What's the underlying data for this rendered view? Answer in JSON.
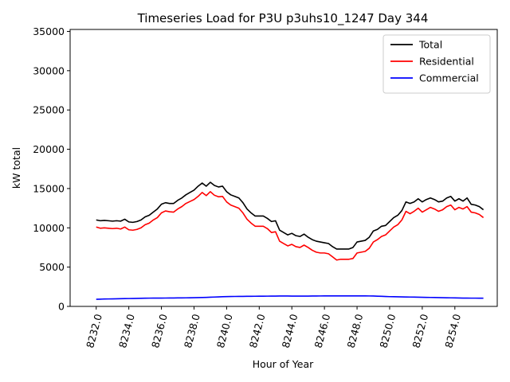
{
  "chart_data": {
    "type": "line",
    "title": "Timeseries Load for P3U p3uhs10_1247  Day 344",
    "xlabel": "Hour of Year",
    "ylabel": "kW total",
    "xlim": [
      8230.4,
      8256.6
    ],
    "ylim": [
      0,
      35250
    ],
    "xticks": [
      8232,
      8234,
      8236,
      8238,
      8240,
      8242,
      8244,
      8246,
      8248,
      8250,
      8252,
      8254
    ],
    "xtick_labels": [
      "8232.0",
      "8234.0",
      "8236.0",
      "8238.0",
      "8240.0",
      "8242.0",
      "8244.0",
      "8246.0",
      "8248.0",
      "8250.0",
      "8252.0",
      "8254.0"
    ],
    "yticks": [
      0,
      5000,
      10000,
      15000,
      20000,
      25000,
      30000,
      35000
    ],
    "ytick_labels": [
      "0",
      "5000",
      "10000",
      "15000",
      "20000",
      "25000",
      "30000",
      "35000"
    ],
    "x": [
      8232.0,
      8232.25,
      8232.5,
      8232.75,
      8233.0,
      8233.25,
      8233.5,
      8233.75,
      8234.0,
      8234.25,
      8234.5,
      8234.75,
      8235.0,
      8235.25,
      8235.5,
      8235.75,
      8236.0,
      8236.25,
      8236.5,
      8236.75,
      8237.0,
      8237.25,
      8237.5,
      8237.75,
      8238.0,
      8238.25,
      8238.5,
      8238.75,
      8239.0,
      8239.25,
      8239.5,
      8239.75,
      8240.0,
      8240.25,
      8240.5,
      8240.75,
      8241.0,
      8241.25,
      8241.5,
      8241.75,
      8242.0,
      8242.25,
      8242.5,
      8242.75,
      8243.0,
      8243.25,
      8243.5,
      8243.75,
      8244.0,
      8244.25,
      8244.5,
      8244.75,
      8245.0,
      8245.25,
      8245.5,
      8245.75,
      8246.0,
      8246.25,
      8246.5,
      8246.75,
      8247.0,
      8247.25,
      8247.5,
      8247.75,
      8248.0,
      8248.25,
      8248.5,
      8248.75,
      8249.0,
      8249.25,
      8249.5,
      8249.75,
      8250.0,
      8250.25,
      8250.5,
      8250.75,
      8251.0,
      8251.25,
      8251.5,
      8251.75,
      8252.0,
      8252.25,
      8252.5,
      8252.75,
      8253.0,
      8253.25,
      8253.5,
      8253.75,
      8254.0,
      8254.25,
      8254.5,
      8254.75,
      8255.0,
      8255.25,
      8255.5,
      8255.75
    ],
    "series": [
      {
        "name": "Total",
        "color": "#000000",
        "values": [
          11000,
          10900,
          10950,
          10900,
          10850,
          10900,
          10850,
          11100,
          10750,
          10700,
          10800,
          11000,
          11400,
          11600,
          12000,
          12400,
          13000,
          13200,
          13100,
          13100,
          13500,
          13800,
          14200,
          14500,
          14800,
          15300,
          15700,
          15300,
          15800,
          15400,
          15200,
          15300,
          14600,
          14200,
          14000,
          13800,
          13200,
          12400,
          11900,
          11500,
          11500,
          11500,
          11200,
          10800,
          10900,
          9700,
          9400,
          9100,
          9300,
          9000,
          8900,
          9200,
          8800,
          8500,
          8300,
          8200,
          8100,
          8000,
          7600,
          7300,
          7300,
          7300,
          7300,
          7500,
          8200,
          8300,
          8400,
          8800,
          9600,
          9800,
          10200,
          10300,
          10800,
          11300,
          11600,
          12200,
          13300,
          13100,
          13300,
          13700,
          13300,
          13600,
          13800,
          13600,
          13300,
          13400,
          13800,
          14000,
          13400,
          13700,
          13400,
          13800,
          13000,
          12900,
          12700,
          12300
        ]
      },
      {
        "name": "Residential",
        "color": "#ff0000",
        "values": [
          10100,
          9950,
          10000,
          9950,
          9900,
          9950,
          9850,
          10100,
          9750,
          9700,
          9800,
          10000,
          10400,
          10600,
          11000,
          11300,
          11900,
          12150,
          12050,
          12000,
          12400,
          12700,
          13100,
          13350,
          13600,
          14000,
          14500,
          14100,
          14600,
          14150,
          13950,
          14000,
          13300,
          12900,
          12700,
          12500,
          11900,
          11100,
          10600,
          10200,
          10200,
          10200,
          9900,
          9400,
          9500,
          8300,
          8000,
          7700,
          7900,
          7600,
          7500,
          7800,
          7500,
          7150,
          6900,
          6800,
          6800,
          6700,
          6300,
          5900,
          6000,
          6000,
          6000,
          6100,
          6800,
          6900,
          7000,
          7400,
          8200,
          8500,
          8900,
          9100,
          9600,
          10100,
          10400,
          11000,
          12100,
          11800,
          12100,
          12500,
          12000,
          12300,
          12600,
          12400,
          12100,
          12300,
          12700,
          12900,
          12300,
          12600,
          12400,
          12700,
          12000,
          11900,
          11700,
          11300
        ]
      },
      {
        "name": "Commercial",
        "color": "#0000ff",
        "values": [
          900,
          920,
          940,
          950,
          960,
          970,
          980,
          990,
          1000,
          1010,
          1020,
          1030,
          1040,
          1050,
          1055,
          1060,
          1060,
          1065,
          1070,
          1075,
          1080,
          1085,
          1090,
          1100,
          1110,
          1120,
          1130,
          1150,
          1170,
          1190,
          1210,
          1230,
          1250,
          1260,
          1265,
          1270,
          1275,
          1280,
          1285,
          1290,
          1295,
          1300,
          1305,
          1310,
          1315,
          1320,
          1320,
          1320,
          1315,
          1310,
          1310,
          1310,
          1315,
          1320,
          1325,
          1330,
          1335,
          1340,
          1340,
          1340,
          1340,
          1340,
          1340,
          1340,
          1340,
          1340,
          1340,
          1330,
          1320,
          1300,
          1280,
          1260,
          1240,
          1230,
          1220,
          1210,
          1200,
          1190,
          1180,
          1170,
          1160,
          1150,
          1140,
          1130,
          1120,
          1110,
          1100,
          1090,
          1080,
          1070,
          1060,
          1055,
          1050,
          1050,
          1045,
          1040
        ]
      }
    ],
    "legend_position": "top-right",
    "grid": false
  }
}
